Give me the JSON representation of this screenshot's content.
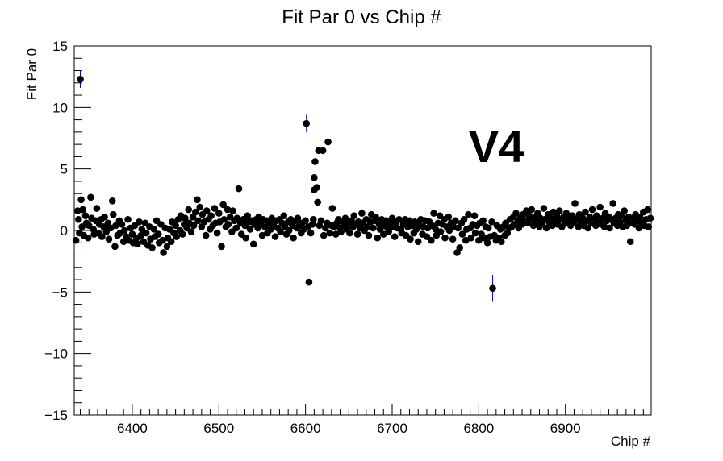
{
  "chart_data": {
    "type": "scatter",
    "title": "Fit Par 0 vs Chip #",
    "xlabel": "Chip #",
    "ylabel": "Fit Par 0",
    "xlim": [
      6333,
      6999
    ],
    "ylim": [
      -15,
      15
    ],
    "x_ticks": [
      6400,
      6500,
      6600,
      6700,
      6800,
      6900
    ],
    "y_ticks": [
      -15,
      -10,
      -5,
      0,
      5,
      10,
      15
    ],
    "annotation": {
      "text": "V4",
      "color": "#ff0000"
    },
    "marker_color": "#000000",
    "error_bar_color": "#0000cc",
    "grid": false,
    "series_points": [
      [
        6335,
        -0.8
      ],
      [
        6337,
        1.6
      ],
      [
        6338,
        0.9
      ],
      [
        6339,
        -0.2
      ],
      [
        6340,
        12.3
      ],
      [
        6341,
        2.5
      ],
      [
        6342,
        0.3
      ],
      [
        6343,
        1.7
      ],
      [
        6344,
        -0.4
      ],
      [
        6346,
        1.2
      ],
      [
        6347,
        0.6
      ],
      [
        6349,
        -0.6
      ],
      [
        6350,
        0.4
      ],
      [
        6352,
        2.7
      ],
      [
        6353,
        1.0
      ],
      [
        6355,
        0.1
      ],
      [
        6356,
        -0.3
      ],
      [
        6358,
        0.8
      ],
      [
        6359,
        1.8
      ],
      [
        6361,
        -0.2
      ],
      [
        6362,
        0.5
      ],
      [
        6364,
        0.9
      ],
      [
        6365,
        -0.5
      ],
      [
        6367,
        0.3
      ],
      [
        6368,
        1.1
      ],
      [
        6370,
        -0.1
      ],
      [
        6372,
        0.6
      ],
      [
        6373,
        -0.7
      ],
      [
        6375,
        0.2
      ],
      [
        6377,
        2.4
      ],
      [
        6378,
        1.3
      ],
      [
        6380,
        -1.3
      ],
      [
        6381,
        0.4
      ],
      [
        6383,
        -0.4
      ],
      [
        6385,
        0.8
      ],
      [
        6386,
        -0.2
      ],
      [
        6388,
        0.5
      ],
      [
        6390,
        -0.9
      ],
      [
        6391,
        0.0
      ],
      [
        6393,
        -0.5
      ],
      [
        6395,
        0.9
      ],
      [
        6396,
        -0.8
      ],
      [
        6398,
        0.2
      ],
      [
        6400,
        -0.3
      ],
      [
        6401,
        -1.0
      ],
      [
        6403,
        0.4
      ],
      [
        6405,
        -0.6
      ],
      [
        6406,
        -1.1
      ],
      [
        6408,
        0.7
      ],
      [
        6410,
        -0.4
      ],
      [
        6411,
        0.1
      ],
      [
        6413,
        -0.9
      ],
      [
        6415,
        0.6
      ],
      [
        6416,
        -0.2
      ],
      [
        6418,
        -1.2
      ],
      [
        6420,
        0.3
      ],
      [
        6421,
        -0.7
      ],
      [
        6423,
        -1.4
      ],
      [
        6425,
        0.1
      ],
      [
        6426,
        -0.5
      ],
      [
        6428,
        0.8
      ],
      [
        6430,
        -0.3
      ],
      [
        6431,
        -1.0
      ],
      [
        6433,
        0.5
      ],
      [
        6435,
        -0.8
      ],
      [
        6436,
        -1.8
      ],
      [
        6438,
        0.2
      ],
      [
        6440,
        -1.3
      ],
      [
        6441,
        -0.6
      ],
      [
        6443,
        0.1
      ],
      [
        6445,
        -0.9
      ],
      [
        6446,
        0.7
      ],
      [
        6448,
        -0.2
      ],
      [
        6450,
        0.4
      ],
      [
        6451,
        -0.5
      ],
      [
        6453,
        0.9
      ],
      [
        6455,
        0.0
      ],
      [
        6456,
        1.2
      ],
      [
        6458,
        -0.3
      ],
      [
        6460,
        0.5
      ],
      [
        6461,
        1.0
      ],
      [
        6463,
        0.2
      ],
      [
        6465,
        1.7
      ],
      [
        6466,
        0.6
      ],
      [
        6468,
        -0.1
      ],
      [
        6470,
        1.1
      ],
      [
        6471,
        0.4
      ],
      [
        6473,
        1.5
      ],
      [
        6475,
        2.5
      ],
      [
        6476,
        0.8
      ],
      [
        6478,
        1.9
      ],
      [
        6480,
        0.3
      ],
      [
        6481,
        1.3
      ],
      [
        6483,
        0.7
      ],
      [
        6485,
        -0.4
      ],
      [
        6486,
        1.6
      ],
      [
        6488,
        0.9
      ],
      [
        6490,
        0.1
      ],
      [
        6491,
        1.2
      ],
      [
        6493,
        0.4
      ],
      [
        6495,
        1.8
      ],
      [
        6496,
        0.6
      ],
      [
        6498,
        -0.2
      ],
      [
        6500,
        1.4
      ],
      [
        6501,
        0.7
      ],
      [
        6503,
        -1.3
      ],
      [
        6505,
        2.1
      ],
      [
        6506,
        0.9
      ],
      [
        6508,
        0.3
      ],
      [
        6510,
        1.7
      ],
      [
        6511,
        0.5
      ],
      [
        6513,
        1.1
      ],
      [
        6515,
        -0.1
      ],
      [
        6516,
        1.6
      ],
      [
        6518,
        0.8
      ],
      [
        6520,
        0.2
      ],
      [
        6521,
        1.0
      ],
      [
        6523,
        3.4
      ],
      [
        6525,
        0.6
      ],
      [
        6526,
        -0.3
      ],
      [
        6528,
        0.9
      ],
      [
        6530,
        0.4
      ],
      [
        6531,
        -0.6
      ],
      [
        6533,
        1.2
      ],
      [
        6535,
        0.7
      ],
      [
        6536,
        0.1
      ],
      [
        6538,
        0.8
      ],
      [
        6540,
        -1.1
      ],
      [
        6541,
        0.5
      ],
      [
        6543,
        0.9
      ],
      [
        6545,
        0.2
      ],
      [
        6546,
        1.1
      ],
      [
        6548,
        0.6
      ],
      [
        6550,
        -0.4
      ],
      [
        6551,
        0.9
      ],
      [
        6553,
        0.3
      ],
      [
        6555,
        0.8
      ],
      [
        6556,
        -0.2
      ],
      [
        6558,
        0.6
      ],
      [
        6560,
        0.1
      ],
      [
        6561,
        1.0
      ],
      [
        6563,
        0.4
      ],
      [
        6565,
        -0.5
      ],
      [
        6566,
        0.8
      ],
      [
        6568,
        0.2
      ],
      [
        6570,
        0.9
      ],
      [
        6571,
        -0.1
      ],
      [
        6573,
        0.6
      ],
      [
        6575,
        1.2
      ],
      [
        6576,
        0.3
      ],
      [
        6578,
        -0.3
      ],
      [
        6580,
        0.7
      ],
      [
        6581,
        0.0
      ],
      [
        6583,
        0.9
      ],
      [
        6585,
        0.4
      ],
      [
        6586,
        -0.6
      ],
      [
        6588,
        0.8
      ],
      [
        6590,
        0.2
      ],
      [
        6591,
        1.0
      ],
      [
        6593,
        0.4
      ],
      [
        6595,
        -0.2
      ],
      [
        6596,
        0.6
      ],
      [
        6598,
        0.1
      ],
      [
        6600,
        0.8
      ],
      [
        6601,
        8.7
      ],
      [
        6603,
        0.3
      ],
      [
        6604,
        -4.2
      ],
      [
        6606,
        -0.2
      ],
      [
        6608,
        0.5
      ],
      [
        6609,
        0.9
      ],
      [
        6610,
        3.3
      ],
      [
        6610,
        4.3
      ],
      [
        6611,
        5.6
      ],
      [
        6613,
        3.5
      ],
      [
        6614,
        2.3
      ],
      [
        6615,
        6.5
      ],
      [
        6616,
        0.4
      ],
      [
        6618,
        0.8
      ],
      [
        6620,
        6.5
      ],
      [
        6621,
        -0.4
      ],
      [
        6623,
        0.2
      ],
      [
        6625,
        0.6
      ],
      [
        6626,
        7.2
      ],
      [
        6628,
        -0.2
      ],
      [
        6630,
        0.4
      ],
      [
        6631,
        1.8
      ],
      [
        6633,
        0.3
      ],
      [
        6635,
        -0.3
      ],
      [
        6636,
        0.6
      ],
      [
        6638,
        0.9
      ],
      [
        6640,
        0.2
      ],
      [
        6641,
        -0.1
      ],
      [
        6643,
        0.7
      ],
      [
        6645,
        0.4
      ],
      [
        6646,
        1.0
      ],
      [
        6648,
        0.1
      ],
      [
        6650,
        0.6
      ],
      [
        6651,
        -0.2
      ],
      [
        6653,
        0.8
      ],
      [
        6655,
        0.3
      ],
      [
        6656,
        1.2
      ],
      [
        6658,
        0.5
      ],
      [
        6660,
        -0.3
      ],
      [
        6661,
        0.7
      ],
      [
        6663,
        0.2
      ],
      [
        6665,
        1.4
      ],
      [
        6666,
        0.6
      ],
      [
        6668,
        0.0
      ],
      [
        6670,
        0.9
      ],
      [
        6671,
        0.3
      ],
      [
        6673,
        -0.4
      ],
      [
        6675,
        0.7
      ],
      [
        6676,
        1.3
      ],
      [
        6678,
        0.2
      ],
      [
        6680,
        0.8
      ],
      [
        6681,
        1.1
      ],
      [
        6683,
        -0.6
      ],
      [
        6685,
        0.5
      ],
      [
        6686,
        0.1
      ],
      [
        6688,
        0.9
      ],
      [
        6690,
        -0.3
      ],
      [
        6691,
        0.4
      ],
      [
        6693,
        0.8
      ],
      [
        6695,
        0.2
      ],
      [
        6696,
        -0.1
      ],
      [
        6698,
        0.6
      ],
      [
        6700,
        1.0
      ],
      [
        6701,
        0.3
      ],
      [
        6703,
        -0.5
      ],
      [
        6705,
        0.7
      ],
      [
        6706,
        0.2
      ],
      [
        6708,
        0.9
      ],
      [
        6710,
        0.1
      ],
      [
        6711,
        -0.2
      ],
      [
        6713,
        0.5
      ],
      [
        6715,
        0.9
      ],
      [
        6716,
        -0.4
      ],
      [
        6718,
        0.3
      ],
      [
        6720,
        0.8
      ],
      [
        6721,
        -0.7
      ],
      [
        6723,
        0.4
      ],
      [
        6725,
        -0.2
      ],
      [
        6726,
        0.7
      ],
      [
        6728,
        0.1
      ],
      [
        6730,
        -0.9
      ],
      [
        6731,
        0.5
      ],
      [
        6733,
        0.9
      ],
      [
        6735,
        -0.3
      ],
      [
        6736,
        0.3
      ],
      [
        6738,
        0.8
      ],
      [
        6740,
        -0.5
      ],
      [
        6741,
        0.2
      ],
      [
        6743,
        0.7
      ],
      [
        6745,
        -0.8
      ],
      [
        6746,
        0.4
      ],
      [
        6748,
        1.4
      ],
      [
        6750,
        0.1
      ],
      [
        6751,
        -0.4
      ],
      [
        6753,
        0.6
      ],
      [
        6755,
        1.2
      ],
      [
        6756,
        -0.1
      ],
      [
        6758,
        0.5
      ],
      [
        6760,
        0.9
      ],
      [
        6761,
        -0.6
      ],
      [
        6763,
        0.3
      ],
      [
        6765,
        1.1
      ],
      [
        6766,
        0.0
      ],
      [
        6768,
        0.6
      ],
      [
        6770,
        -0.7
      ],
      [
        6771,
        0.3
      ],
      [
        6773,
        0.8
      ],
      [
        6775,
        -1.8
      ],
      [
        6776,
        0.2
      ],
      [
        6778,
        -1.4
      ],
      [
        6780,
        0.6
      ],
      [
        6781,
        -0.3
      ],
      [
        6783,
        0.9
      ],
      [
        6785,
        -0.8
      ],
      [
        6786,
        0.1
      ],
      [
        6788,
        1.3
      ],
      [
        6790,
        0.2
      ],
      [
        6791,
        -0.6
      ],
      [
        6793,
        0.5
      ],
      [
        6795,
        1.2
      ],
      [
        6796,
        -0.2
      ],
      [
        6798,
        0.4
      ],
      [
        6800,
        -0.8
      ],
      [
        6801,
        0.6
      ],
      [
        6803,
        -0.3
      ],
      [
        6805,
        0.8
      ],
      [
        6806,
        -0.6
      ],
      [
        6808,
        0.3
      ],
      [
        6810,
        -1.0
      ],
      [
        6811,
        0.2
      ],
      [
        6813,
        -0.5
      ],
      [
        6815,
        0.7
      ],
      [
        6816,
        -4.7
      ],
      [
        6818,
        -0.4
      ],
      [
        6820,
        -0.8
      ],
      [
        6821,
        0.4
      ],
      [
        6823,
        -0.6
      ],
      [
        6825,
        0.1
      ],
      [
        6826,
        -0.9
      ],
      [
        6828,
        0.3
      ],
      [
        6830,
        -0.4
      ],
      [
        6831,
        0.6
      ],
      [
        6833,
        -0.2
      ],
      [
        6835,
        0.2
      ],
      [
        6836,
        0.9
      ],
      [
        6838,
        0.3
      ],
      [
        6840,
        1.1
      ],
      [
        6841,
        0.5
      ],
      [
        6843,
        1.4
      ],
      [
        6845,
        0.7
      ],
      [
        6846,
        0.2
      ],
      [
        6848,
        1.0
      ],
      [
        6850,
        0.5
      ],
      [
        6851,
        1.3
      ],
      [
        6853,
        0.8
      ],
      [
        6855,
        1.6
      ],
      [
        6856,
        0.6
      ],
      [
        6858,
        1.2
      ],
      [
        6860,
        0.9
      ],
      [
        6861,
        1.7
      ],
      [
        6863,
        0.4
      ],
      [
        6865,
        1.1
      ],
      [
        6866,
        0.7
      ],
      [
        6868,
        1.4
      ],
      [
        6870,
        0.3
      ],
      [
        6871,
        1.0
      ],
      [
        6873,
        0.6
      ],
      [
        6875,
        1.8
      ],
      [
        6876,
        0.9
      ],
      [
        6878,
        0.2
      ],
      [
        6880,
        1.3
      ],
      [
        6881,
        0.7
      ],
      [
        6883,
        1.0
      ],
      [
        6885,
        0.4
      ],
      [
        6886,
        1.5
      ],
      [
        6888,
        0.8
      ],
      [
        6890,
        1.2
      ],
      [
        6891,
        0.5
      ],
      [
        6893,
        1.6
      ],
      [
        6895,
        0.9
      ],
      [
        6896,
        0.3
      ],
      [
        6898,
        1.1
      ],
      [
        6900,
        0.6
      ],
      [
        6901,
        1.4
      ],
      [
        6903,
        0.8
      ],
      [
        6905,
        1.0
      ],
      [
        6906,
        0.4
      ],
      [
        6908,
        1.2
      ],
      [
        6910,
        0.7
      ],
      [
        6911,
        2.2
      ],
      [
        6913,
        0.9
      ],
      [
        6915,
        0.3
      ],
      [
        6916,
        1.3
      ],
      [
        6918,
        0.6
      ],
      [
        6920,
        1.0
      ],
      [
        6921,
        0.4
      ],
      [
        6923,
        1.5
      ],
      [
        6925,
        0.8
      ],
      [
        6926,
        0.2
      ],
      [
        6928,
        1.1
      ],
      [
        6930,
        0.6
      ],
      [
        6931,
        1.7
      ],
      [
        6933,
        0.9
      ],
      [
        6935,
        0.4
      ],
      [
        6936,
        1.2
      ],
      [
        6938,
        0.7
      ],
      [
        6940,
        1.9
      ],
      [
        6941,
        0.5
      ],
      [
        6943,
        1.0
      ],
      [
        6945,
        0.3
      ],
      [
        6946,
        1.4
      ],
      [
        6948,
        0.8
      ],
      [
        6950,
        1.1
      ],
      [
        6951,
        0.2
      ],
      [
        6953,
        0.9
      ],
      [
        6955,
        2.2
      ],
      [
        6956,
        0.6
      ],
      [
        6958,
        1.0
      ],
      [
        6960,
        0.4
      ],
      [
        6961,
        1.3
      ],
      [
        6963,
        0.7
      ],
      [
        6965,
        1.2
      ],
      [
        6966,
        0.3
      ],
      [
        6968,
        1.6
      ],
      [
        6970,
        0.8
      ],
      [
        6971,
        0.4
      ],
      [
        6973,
        1.1
      ],
      [
        6975,
        -0.9
      ],
      [
        6976,
        0.6
      ],
      [
        6978,
        1.0
      ],
      [
        6980,
        0.5
      ],
      [
        6981,
        1.3
      ],
      [
        6983,
        0.8
      ],
      [
        6985,
        0.2
      ],
      [
        6986,
        1.1
      ],
      [
        6988,
        0.6
      ],
      [
        6990,
        1.5
      ],
      [
        6991,
        0.4
      ],
      [
        6993,
        0.9
      ],
      [
        6995,
        1.7
      ],
      [
        6996,
        0.3
      ],
      [
        6998,
        1.0
      ]
    ],
    "error_bars": [
      [
        6340,
        12.3,
        0.7
      ],
      [
        6601,
        8.7,
        0.7
      ],
      [
        6816,
        -4.7,
        1.1
      ]
    ]
  }
}
